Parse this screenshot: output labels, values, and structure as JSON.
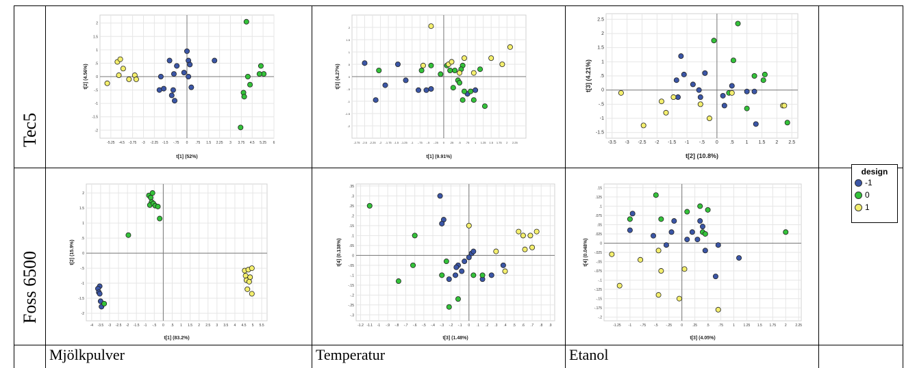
{
  "rows": [
    "Tec5",
    "Foss 6500"
  ],
  "columns": [
    "Mjölkpulver",
    "Temperatur",
    "Etanol"
  ],
  "legend": {
    "title": "design",
    "items": [
      {
        "label": "-1",
        "color": "#3b56a6"
      },
      {
        "label": "0",
        "color": "#34c23a"
      },
      {
        "label": "1",
        "color": "#f4ef6e"
      }
    ]
  },
  "chart_data": [
    {
      "type": "scatter",
      "xlabel": "t[1] (52%)",
      "ylabel": "t[2] (4.56%)",
      "xlim": [
        -6,
        6
      ],
      "ylim": [
        -2.3,
        2.3
      ],
      "xticks": [
        -5.25,
        -4.5,
        -3.75,
        -3,
        -2.25,
        -1.5,
        -0.75,
        0,
        0.75,
        1.5,
        2.25,
        3,
        3.75,
        4.5,
        5.25,
        6
      ],
      "yticks": [
        -2,
        -1.5,
        -1,
        -0.5,
        0,
        0.5,
        1,
        1.5,
        2
      ],
      "series": [
        {
          "design": -1,
          "points": [
            [
              -1.9,
              -0.5
            ],
            [
              -1.6,
              -0.45
            ],
            [
              -1.2,
              0.6
            ],
            [
              -0.9,
              0.1
            ],
            [
              -0.7,
              0.4
            ],
            [
              -0.95,
              -0.5
            ],
            [
              -1.05,
              -0.7
            ],
            [
              -0.85,
              -0.9
            ],
            [
              -0.2,
              0.15
            ],
            [
              0,
              0.95
            ],
            [
              0.1,
              0.6
            ],
            [
              0.2,
              0.45
            ],
            [
              0.1,
              0
            ],
            [
              0.3,
              -0.4
            ],
            [
              1.9,
              0.6
            ],
            [
              -1.8,
              0
            ]
          ]
        },
        {
          "design": 0,
          "points": [
            [
              4.1,
              2.05
            ],
            [
              3.7,
              -1.9
            ],
            [
              3.9,
              -0.6
            ],
            [
              3.95,
              -0.75
            ],
            [
              4.2,
              0
            ],
            [
              4.35,
              -0.3
            ],
            [
              5.1,
              0.4
            ],
            [
              5.3,
              0.1
            ],
            [
              5.0,
              0.1
            ]
          ]
        },
        {
          "design": 1,
          "points": [
            [
              -5.5,
              -0.25
            ],
            [
              -4.8,
              0.55
            ],
            [
              -4.6,
              0.65
            ],
            [
              -4.7,
              0.05
            ],
            [
              -4.4,
              0.3
            ],
            [
              -4.0,
              -0.1
            ],
            [
              -3.6,
              0.05
            ],
            [
              -3.5,
              -0.1
            ]
          ]
        }
      ]
    },
    {
      "type": "scatter",
      "xlabel": "t[1] (9.91%)",
      "ylabel": "t[3] (4.27%)",
      "xlim": [
        -2.9,
        2.6
      ],
      "ylim": [
        -2.5,
        2.5
      ],
      "xticks": [
        -2.75,
        -2.5,
        -2.25,
        -2,
        -1.75,
        -1.5,
        -1.25,
        -1,
        -0.75,
        -0.5,
        -0.25,
        0,
        0.25,
        0.5,
        0.75,
        1,
        1.25,
        1.5,
        1.75,
        2,
        2.25
      ],
      "yticks": [
        -2,
        -1.5,
        -1,
        -0.5,
        0,
        0.5,
        1,
        1.5,
        2
      ],
      "series": [
        {
          "design": -1,
          "points": [
            [
              -2.5,
              0.55
            ],
            [
              -2.15,
              -0.95
            ],
            [
              -1.85,
              -0.35
            ],
            [
              -1.45,
              0.5
            ],
            [
              -1.2,
              -0.15
            ],
            [
              -0.8,
              -0.55
            ],
            [
              -0.55,
              -0.55
            ],
            [
              -0.4,
              -0.5
            ],
            [
              1.0,
              -0.55
            ],
            [
              0.75,
              -0.7
            ]
          ]
        },
        {
          "design": 0,
          "points": [
            [
              -2.05,
              0.25
            ],
            [
              -0.7,
              0.25
            ],
            [
              -0.4,
              0.45
            ],
            [
              -0.1,
              0.1
            ],
            [
              0.1,
              0.45
            ],
            [
              0.2,
              0.25
            ],
            [
              0.3,
              -0.45
            ],
            [
              0.45,
              -0.15
            ],
            [
              0.5,
              -0.25
            ],
            [
              0.6,
              0.45
            ],
            [
              0.65,
              -0.6
            ],
            [
              0.6,
              -0.95
            ],
            [
              0.95,
              -0.95
            ],
            [
              1.3,
              -1.2
            ],
            [
              1.15,
              0.3
            ],
            [
              0.55,
              0.3
            ],
            [
              0.35,
              0.25
            ],
            [
              0.85,
              -0.6
            ]
          ]
        },
        {
          "design": 1,
          "points": [
            [
              -0.65,
              0.45
            ],
            [
              -0.4,
              2.05
            ],
            [
              0.15,
              0.5
            ],
            [
              0.5,
              0.15
            ],
            [
              0.65,
              0.75
            ],
            [
              0.95,
              0.15
            ],
            [
              1.5,
              0.75
            ],
            [
              1.85,
              0.5
            ],
            [
              2.1,
              1.2
            ],
            [
              0.25,
              0.6
            ]
          ]
        }
      ]
    },
    {
      "type": "scatter",
      "xlabel": "t[2] (10.8%)",
      "ylabel": "t[3] (4.21%)",
      "xlim": [
        -3.7,
        2.7
      ],
      "ylim": [
        -1.7,
        2.7
      ],
      "xticks": [
        -3.5,
        -3,
        -2.5,
        -2,
        -1.5,
        -1,
        -0.5,
        0,
        0.5,
        1,
        1.5,
        2,
        2.5
      ],
      "yticks": [
        -1.5,
        -1,
        -0.5,
        0,
        0.5,
        1,
        1.5,
        2,
        2.5
      ],
      "series": [
        {
          "design": -1,
          "points": [
            [
              -1.2,
              1.2
            ],
            [
              -1.1,
              0.55
            ],
            [
              -1.35,
              0.35
            ],
            [
              -1.3,
              -0.25
            ],
            [
              -0.8,
              0.2
            ],
            [
              -0.6,
              0
            ],
            [
              -0.55,
              -0.25
            ],
            [
              -0.4,
              0.6
            ],
            [
              0.2,
              -0.2
            ],
            [
              0.5,
              0.15
            ],
            [
              0.25,
              -0.55
            ],
            [
              1.0,
              -0.05
            ],
            [
              1.25,
              -0.05
            ],
            [
              1.3,
              -1.2
            ]
          ]
        },
        {
          "design": 0,
          "points": [
            [
              -0.1,
              1.75
            ],
            [
              0.7,
              2.35
            ],
            [
              0.55,
              1.05
            ],
            [
              1.25,
              0.5
            ],
            [
              1.6,
              0.55
            ],
            [
              1.55,
              0.35
            ],
            [
              1.0,
              -0.65
            ],
            [
              0.4,
              -0.1
            ],
            [
              2.35,
              -1.15
            ]
          ]
        },
        {
          "design": 1,
          "points": [
            [
              -3.2,
              -0.1
            ],
            [
              -2.45,
              -1.25
            ],
            [
              -1.85,
              -0.4
            ],
            [
              -1.7,
              -0.8
            ],
            [
              -1.45,
              -0.25
            ],
            [
              -0.55,
              -0.5
            ],
            [
              -0.25,
              -1.0
            ],
            [
              0.5,
              -0.1
            ],
            [
              2.2,
              -0.55
            ],
            [
              2.25,
              -0.55
            ]
          ]
        }
      ]
    },
    {
      "type": "scatter",
      "xlabel": "t[1] (83.2%)",
      "ylabel": "t[2] (15.9%)",
      "xlim": [
        -4.3,
        5.8
      ],
      "ylim": [
        -2.25,
        2.3
      ],
      "xticks": [
        -4,
        -3.5,
        -3,
        -2.5,
        -2,
        -1.5,
        -1,
        -0.5,
        0,
        0.5,
        1,
        1.5,
        2,
        2.5,
        3,
        3.5,
        4,
        4.5,
        5,
        5.5
      ],
      "yticks": [
        -2,
        -1.5,
        -1,
        -0.5,
        0,
        0.5,
        1,
        1.5,
        2
      ],
      "series": [
        {
          "design": -1,
          "points": [
            [
              -3.55,
              -1.1
            ],
            [
              -3.65,
              -1.18
            ],
            [
              -3.6,
              -1.3
            ],
            [
              -3.55,
              -1.35
            ],
            [
              -3.5,
              -1.6
            ],
            [
              -3.45,
              -1.78
            ]
          ]
        },
        {
          "design": 0,
          "points": [
            [
              -1.95,
              0.6
            ],
            [
              -0.8,
              1.92
            ],
            [
              -0.6,
              2.0
            ],
            [
              -0.7,
              1.85
            ],
            [
              -0.65,
              1.7
            ],
            [
              -0.75,
              1.6
            ],
            [
              -0.55,
              1.65
            ],
            [
              -0.45,
              1.58
            ],
            [
              -0.3,
              1.55
            ],
            [
              -0.2,
              1.15
            ],
            [
              -3.3,
              -1.68
            ]
          ]
        },
        {
          "design": 1,
          "points": [
            [
              4.55,
              -0.58
            ],
            [
              4.75,
              -0.55
            ],
            [
              4.95,
              -0.5
            ],
            [
              4.6,
              -0.75
            ],
            [
              4.85,
              -0.8
            ],
            [
              4.65,
              -0.9
            ],
            [
              4.8,
              -0.95
            ],
            [
              4.7,
              -1.2
            ],
            [
              4.95,
              -1.35
            ]
          ]
        }
      ]
    },
    {
      "type": "scatter",
      "xlabel": "t[3] (1.48%)",
      "ylabel": "t[4] (0.138%)",
      "xlim": [
        -1.25,
        0.95
      ],
      "ylim": [
        -0.33,
        0.36
      ],
      "xticks": [
        -1.2,
        -1.1,
        -1,
        -0.9,
        -0.8,
        -0.7,
        -0.6,
        -0.5,
        -0.4,
        -0.3,
        -0.2,
        -0.1,
        0,
        0.1,
        0.2,
        0.3,
        0.4,
        0.5,
        0.6,
        0.7,
        0.8,
        0.9
      ],
      "yticks": [
        -0.3,
        -0.25,
        -0.2,
        -0.15,
        -0.1,
        -0.05,
        0,
        0.05,
        0.1,
        0.15,
        0.2,
        0.25,
        0.3,
        0.35
      ],
      "series": [
        {
          "design": -1,
          "points": [
            [
              -0.32,
              0.3
            ],
            [
              -0.28,
              0.18
            ],
            [
              -0.3,
              0.16
            ],
            [
              -0.22,
              -0.12
            ],
            [
              -0.15,
              -0.1
            ],
            [
              -0.12,
              -0.05
            ],
            [
              -0.14,
              -0.06
            ],
            [
              -0.08,
              -0.08
            ],
            [
              -0.05,
              -0.03
            ],
            [
              0,
              -0.01
            ],
            [
              0.03,
              0.01
            ],
            [
              0.05,
              0.02
            ],
            [
              0.15,
              -0.12
            ],
            [
              0.25,
              -0.1
            ],
            [
              0.38,
              -0.05
            ]
          ]
        },
        {
          "design": 0,
          "points": [
            [
              -1.1,
              0.25
            ],
            [
              -0.78,
              -0.13
            ],
            [
              -0.62,
              -0.05
            ],
            [
              -0.6,
              0.1
            ],
            [
              -0.3,
              -0.1
            ],
            [
              -0.25,
              -0.03
            ],
            [
              -0.22,
              -0.26
            ],
            [
              -0.12,
              -0.22
            ],
            [
              0.05,
              -0.1
            ],
            [
              0.15,
              -0.1
            ]
          ]
        },
        {
          "design": 1,
          "points": [
            [
              0,
              0.15
            ],
            [
              0.3,
              0.02
            ],
            [
              0.4,
              -0.08
            ],
            [
              0.55,
              0.12
            ],
            [
              0.6,
              0.1
            ],
            [
              0.62,
              0.03
            ],
            [
              0.68,
              0.1
            ],
            [
              0.7,
              0.04
            ],
            [
              0.75,
              0.12
            ]
          ]
        }
      ]
    },
    {
      "type": "scatter",
      "xlabel": "t[3] (4.05%)",
      "ylabel": "t[4] (0.048%)",
      "xlim": [
        -1.5,
        2.3
      ],
      "ylim": [
        -0.21,
        0.16
      ],
      "xticks": [
        -1.25,
        -1,
        -0.75,
        -0.5,
        -0.25,
        0,
        0.25,
        0.5,
        0.75,
        1,
        1.25,
        1.5,
        1.75,
        2,
        2.25
      ],
      "yticks": [
        -0.2,
        -0.175,
        -0.15,
        -0.125,
        -0.1,
        -0.075,
        -0.05,
        -0.025,
        0,
        0.025,
        0.05,
        0.075,
        0.1,
        0.125,
        0.15
      ],
      "series": [
        {
          "design": -1,
          "points": [
            [
              -0.95,
              0.08
            ],
            [
              -1.0,
              0.035
            ],
            [
              -0.55,
              0.02
            ],
            [
              -0.3,
              -0.005
            ],
            [
              -0.15,
              0.06
            ],
            [
              -0.2,
              0.03
            ],
            [
              0.1,
              0.01
            ],
            [
              0.2,
              0.03
            ],
            [
              0.3,
              0.01
            ],
            [
              0.35,
              0.06
            ],
            [
              0.4,
              0.045
            ],
            [
              0.45,
              -0.02
            ],
            [
              0.7,
              -0.005
            ],
            [
              0.65,
              -0.09
            ],
            [
              1.1,
              -0.04
            ]
          ]
        },
        {
          "design": 0,
          "points": [
            [
              -1.0,
              0.065
            ],
            [
              -0.5,
              0.13
            ],
            [
              -0.4,
              0.065
            ],
            [
              0.1,
              0.085
            ],
            [
              0.35,
              0.1
            ],
            [
              0.5,
              0.09
            ],
            [
              0.4,
              0.03
            ],
            [
              0.45,
              0.025
            ],
            [
              2.0,
              0.03
            ]
          ]
        },
        {
          "design": 1,
          "points": [
            [
              -1.35,
              -0.03
            ],
            [
              -1.2,
              -0.115
            ],
            [
              -0.8,
              -0.045
            ],
            [
              -0.45,
              -0.02
            ],
            [
              -0.45,
              -0.14
            ],
            [
              -0.4,
              -0.075
            ],
            [
              -0.05,
              -0.15
            ],
            [
              0.05,
              -0.07
            ],
            [
              0.7,
              -0.18
            ]
          ]
        }
      ]
    }
  ]
}
